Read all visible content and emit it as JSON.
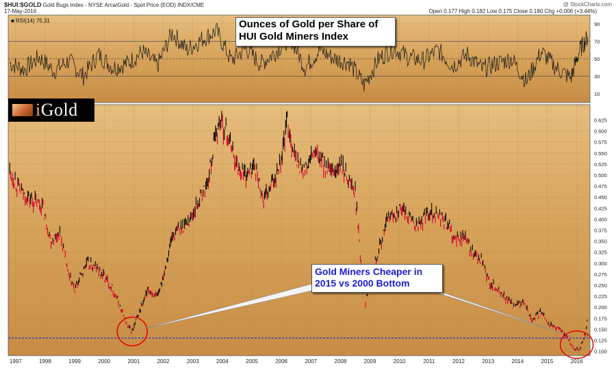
{
  "header": {
    "symbol": "$HUI:$GOLD",
    "description": "Gold Bugs Index - NYSE Arca/Gold - Spot Price (EOD)  INDX/CME",
    "date": "17-May-2016",
    "watermark": "@ StockCharts.com",
    "quote": "Open 0.177  High 0.182  Low 0.175  Close 0.180  Chg +0.006 (+3.44%)"
  },
  "rsi": {
    "label": "RSI(14) 75.31",
    "ticks": [
      "90",
      "70",
      "50",
      "30",
      "10"
    ]
  },
  "logo": {
    "text_i": "i",
    "text_gold": "Gold"
  },
  "annotations": {
    "title_line1": "Ounces of Gold per Share of",
    "title_line2": "HUI Gold Miners Index",
    "callout_line1": "Gold Miners Cheaper in",
    "callout_line2": "2015 vs 2000 Bottom"
  },
  "colors": {
    "background": "#d9a55f",
    "up": "#000000",
    "down": "#d4002a",
    "support": "#1f2fd0",
    "rsi_line": "#111111"
  },
  "chart_data": {
    "type": "line",
    "x": [
      1996.8,
      1997.2,
      1997.6,
      1997.9,
      1998.2,
      1998.5,
      1998.8,
      1999.0,
      1999.4,
      1999.7,
      2000.0,
      2000.3,
      2000.6,
      2000.8,
      2000.95,
      2001.2,
      2001.5,
      2001.8,
      2002.1,
      2002.3,
      2002.6,
      2002.9,
      2003.2,
      2003.5,
      2003.8,
      2003.95,
      2004.3,
      2004.5,
      2004.8,
      2005.1,
      2005.4,
      2005.7,
      2006.0,
      2006.2,
      2006.5,
      2006.8,
      2007.1,
      2007.4,
      2007.7,
      2008.0,
      2008.3,
      2008.5,
      2008.7,
      2008.85,
      2009.0,
      2009.3,
      2009.6,
      2010.0,
      2010.3,
      2010.6,
      2011.0,
      2011.3,
      2011.6,
      2011.9,
      2012.2,
      2012.5,
      2012.8,
      2013.0,
      2013.3,
      2013.6,
      2013.9,
      2014.2,
      2014.5,
      2014.8,
      2015.1,
      2015.4,
      2015.7,
      2015.9,
      2016.1,
      2016.3,
      2016.38
    ],
    "values": [
      0.51,
      0.46,
      0.44,
      0.43,
      0.35,
      0.37,
      0.27,
      0.24,
      0.3,
      0.29,
      0.27,
      0.24,
      0.19,
      0.155,
      0.145,
      0.19,
      0.24,
      0.22,
      0.3,
      0.36,
      0.38,
      0.4,
      0.44,
      0.48,
      0.6,
      0.625,
      0.57,
      0.52,
      0.5,
      0.52,
      0.44,
      0.48,
      0.54,
      0.62,
      0.53,
      0.51,
      0.55,
      0.53,
      0.5,
      0.52,
      0.49,
      0.46,
      0.3,
      0.21,
      0.27,
      0.33,
      0.4,
      0.42,
      0.41,
      0.38,
      0.42,
      0.41,
      0.39,
      0.35,
      0.36,
      0.32,
      0.3,
      0.26,
      0.24,
      0.22,
      0.2,
      0.21,
      0.17,
      0.19,
      0.16,
      0.15,
      0.13,
      0.105,
      0.105,
      0.14,
      0.18
    ],
    "x_ticks": [
      "1997",
      "1998",
      "1999",
      "2000",
      "2001",
      "2002",
      "2003",
      "2004",
      "2005",
      "2006",
      "2007",
      "2008",
      "2009",
      "2010",
      "2011",
      "2012",
      "2013",
      "2014",
      "2015",
      "2016"
    ],
    "y_ticks": [
      "0.100",
      "0.125",
      "0.150",
      "0.175",
      "0.200",
      "0.225",
      "0.250",
      "0.275",
      "0.300",
      "0.325",
      "0.350",
      "0.375",
      "0.400",
      "0.425",
      "0.450",
      "0.475",
      "0.500",
      "0.525",
      "0.550",
      "0.575",
      "0.600",
      "0.625"
    ],
    "ylim": [
      0.09,
      0.66
    ],
    "xlim": [
      1996.75,
      2016.45
    ],
    "support_level": 0.13,
    "rsi_x": [
      1996.8,
      1997.3,
      1997.8,
      1998.3,
      1998.8,
      1999.3,
      1999.8,
      2000.3,
      2000.8,
      2001.3,
      2001.8,
      2002.3,
      2002.8,
      2003.3,
      2003.8,
      2004.3,
      2004.8,
      2005.3,
      2005.8,
      2006.3,
      2006.8,
      2007.3,
      2007.8,
      2008.3,
      2008.8,
      2009.3,
      2009.8,
      2010.3,
      2010.8,
      2011.3,
      2011.8,
      2012.3,
      2012.8,
      2013.3,
      2013.8,
      2014.3,
      2014.8,
      2015.3,
      2015.8,
      2016.1,
      2016.38
    ],
    "rsi_values": [
      45,
      38,
      52,
      36,
      48,
      30,
      55,
      40,
      45,
      58,
      42,
      80,
      60,
      72,
      82,
      48,
      62,
      44,
      58,
      75,
      40,
      60,
      50,
      46,
      20,
      50,
      62,
      52,
      48,
      60,
      42,
      55,
      38,
      45,
      50,
      24,
      58,
      40,
      28,
      60,
      75
    ],
    "rsi_ylim": [
      0,
      100
    ],
    "rsi_levels": [
      30,
      50,
      70
    ]
  }
}
